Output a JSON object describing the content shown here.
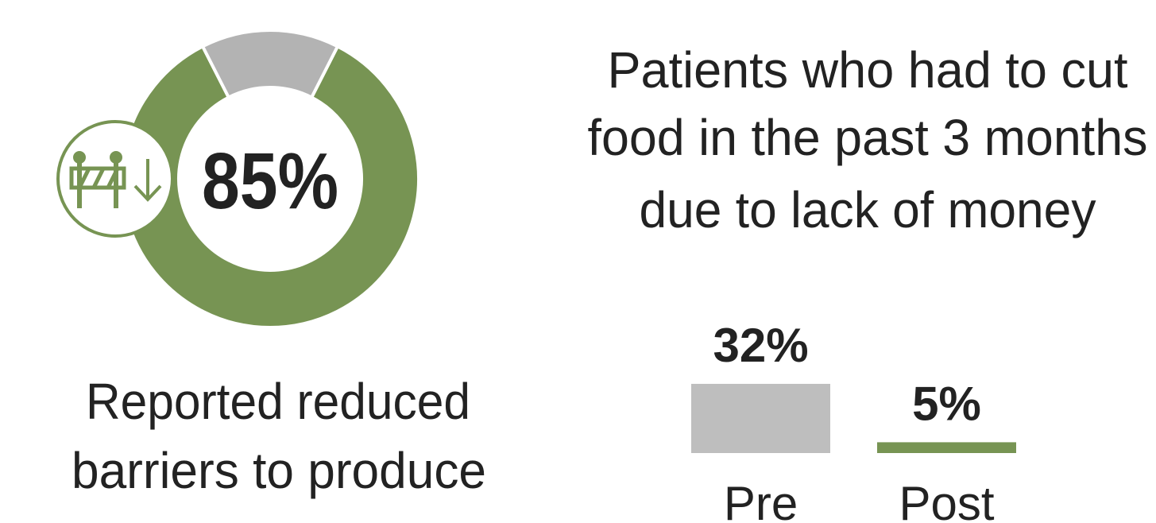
{
  "chart_data": [
    {
      "type": "donut",
      "values": [
        85,
        15
      ],
      "value_labels": [
        "85%",
        null
      ],
      "colors": [
        "#779453",
        "#b3b3b3"
      ],
      "caption": [
        "Reported reduced",
        "barriers to produce"
      ]
    },
    {
      "type": "bar",
      "title": [
        "Patients who had to cut",
        "food in the past 3 months",
        "due to lack of money"
      ],
      "categories": [
        "Pre",
        "Post"
      ],
      "values": [
        32,
        5
      ],
      "value_labels": [
        "32%",
        "5%"
      ],
      "colors": [
        "#bebebe",
        "#779453"
      ]
    }
  ]
}
